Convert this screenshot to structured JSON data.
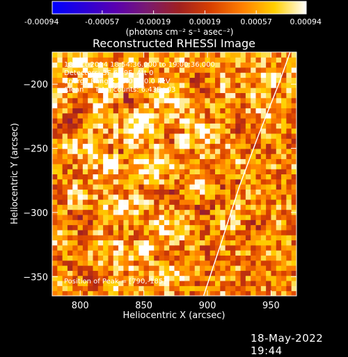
{
  "colorbar": {
    "tick_labels": [
      "-0.00094",
      "-0.00057",
      "-0.00019",
      "0.00019",
      "0.00057",
      "0.00094"
    ],
    "tick_values": [
      -0.00094,
      -0.00057,
      -0.00019,
      0.00019,
      0.00057,
      0.00094
    ],
    "vmin": -0.00094,
    "vmax": 0.00094,
    "units_label": "(photons cm⁻² s⁻¹ asec⁻²)",
    "colormap": [
      "#0000ff",
      "#2a00d8",
      "#5a00b0",
      "#7a1a70",
      "#a02020",
      "#d84000",
      "#ff8000",
      "#ffd000",
      "#ffffff"
    ]
  },
  "chart_data": {
    "type": "heatmap",
    "title": "Reconstructed RHESSI Image",
    "xlabel": "Heliocentric X (arcsec)",
    "ylabel": "Heliocentric Y (arcsec)",
    "xlim": [
      778,
      970
    ],
    "ylim": [
      -365,
      -175
    ],
    "x_ticks": [
      800,
      850,
      900,
      950
    ],
    "y_ticks": [
      -200,
      -250,
      -300,
      -350
    ],
    "x_tick_labels": [
      "800",
      "850",
      "900",
      "950"
    ],
    "y_tick_labels": [
      "−200",
      "−250",
      "−300",
      "−350"
    ],
    "annotations": [
      "18-Oct-2014 18:54:36.000 to 19:00:36.000",
      "Detectors: 3F 6F 9F, Att 0",
      "Energy Range: 25.0 - 50.0 keV",
      "Clean     Total counts: 6.43E+03"
    ],
    "peak_label": "Position of Peak = [790,-185]",
    "sources": [
      {
        "x": 825,
        "y": -262,
        "value": 0.00094
      },
      {
        "x": 880,
        "y": -245,
        "value": 0.0008
      },
      {
        "x": 850,
        "y": -328,
        "value": 0.00085
      },
      {
        "x": 845,
        "y": -200,
        "value": 0.0007
      },
      {
        "x": 800,
        "y": -182,
        "value": 0.00094
      },
      {
        "x": 950,
        "y": -195,
        "value": 0.0006
      }
    ],
    "limb_curve": [
      [
        897,
        -365
      ],
      [
        912,
        -320
      ],
      [
        925,
        -280
      ],
      [
        940,
        -240
      ],
      [
        956,
        -200
      ],
      [
        965,
        -175
      ]
    ]
  },
  "footer": {
    "timestamp": "18-May-2022 19:44"
  }
}
